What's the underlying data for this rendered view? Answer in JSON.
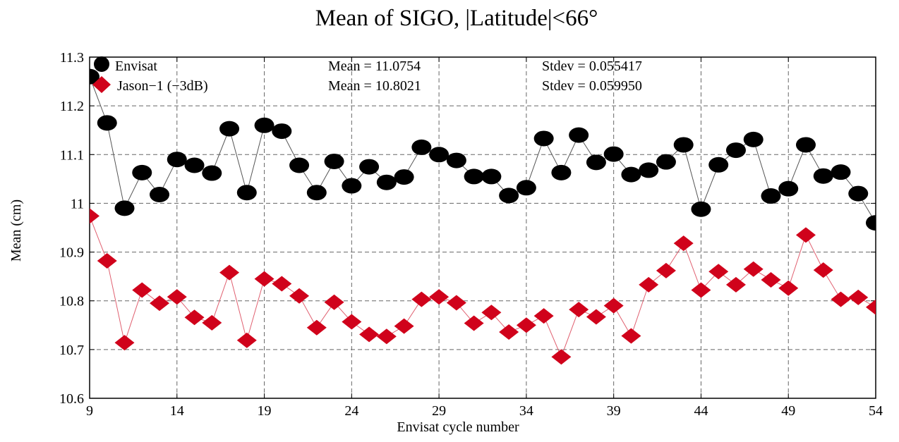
{
  "chart_data": {
    "type": "scatter",
    "title": "Mean of SIGO, |Latitude|<66°",
    "xlabel": "Envisat cycle number",
    "ylabel": "Mean (cm)",
    "xlim": [
      9,
      54
    ],
    "ylim": [
      10.6,
      11.3
    ],
    "xticks": [
      "9",
      "14",
      "19",
      "24",
      "29",
      "34",
      "39",
      "44",
      "49",
      "54"
    ],
    "yticks": [
      "10.6",
      "10.7",
      "10.8",
      "10.9",
      "11",
      "11.1",
      "11.2",
      "11.3"
    ],
    "grid": true,
    "legend_position": "top-left",
    "x": [
      9,
      10,
      11,
      12,
      13,
      14,
      15,
      16,
      17,
      18,
      19,
      20,
      21,
      22,
      23,
      24,
      25,
      26,
      27,
      28,
      29,
      30,
      31,
      32,
      33,
      34,
      35,
      36,
      37,
      38,
      39,
      40,
      41,
      42,
      43,
      44,
      45,
      46,
      47,
      48,
      49,
      50,
      51,
      52,
      53,
      54
    ],
    "series": [
      {
        "name": "Envisat",
        "color": "#000000",
        "line_color": "#555555",
        "marker": "circle",
        "mean_text": "Mean = 11.0754",
        "stdev_text": "Stdev = 0.055417",
        "values": [
          11.26,
          11.165,
          10.99,
          11.063,
          11.018,
          11.09,
          11.078,
          11.062,
          11.153,
          11.022,
          11.16,
          11.148,
          11.078,
          11.022,
          11.086,
          11.036,
          11.075,
          11.043,
          11.054,
          11.115,
          11.1,
          11.088,
          11.055,
          11.055,
          11.016,
          11.032,
          11.133,
          11.063,
          11.14,
          11.084,
          11.101,
          11.059,
          11.068,
          11.085,
          11.12,
          10.988,
          11.079,
          11.109,
          11.131,
          11.015,
          11.03,
          11.12,
          11.056,
          11.064,
          11.02,
          10.96
        ]
      },
      {
        "name": "Jason−1 (−3dB)",
        "color": "#d0021b",
        "line_color": "#e06070",
        "marker": "diamond",
        "mean_text": "Mean = 10.8021",
        "stdev_text": "Stdev = 0.059950",
        "values": [
          10.974,
          10.882,
          10.714,
          10.822,
          10.795,
          10.808,
          10.766,
          10.755,
          10.858,
          10.719,
          10.845,
          10.835,
          10.81,
          10.745,
          10.797,
          10.757,
          10.731,
          10.727,
          10.748,
          10.803,
          10.808,
          10.796,
          10.754,
          10.776,
          10.736,
          10.75,
          10.769,
          10.685,
          10.782,
          10.767,
          10.79,
          10.728,
          10.833,
          10.862,
          10.918,
          10.822,
          10.86,
          10.833,
          10.865,
          10.843,
          10.826,
          10.935,
          10.863,
          10.803,
          10.807,
          10.787
        ]
      }
    ]
  }
}
